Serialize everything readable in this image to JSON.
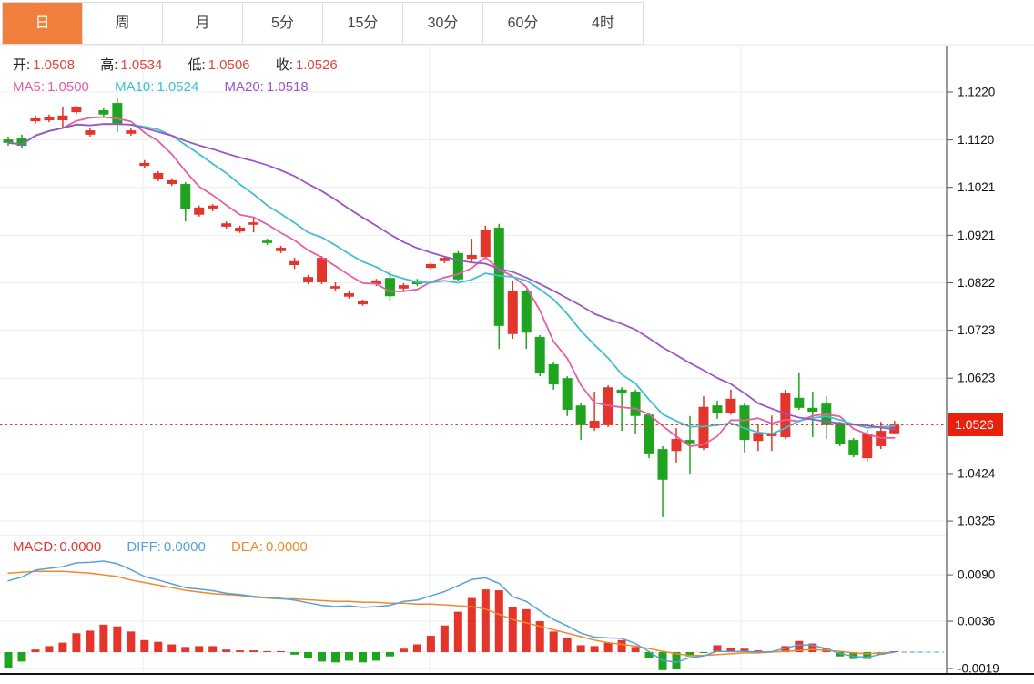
{
  "toolbar": {
    "tabs": [
      {
        "label": "日",
        "active": true
      },
      {
        "label": "周",
        "active": false
      },
      {
        "label": "月",
        "active": false
      },
      {
        "label": "5分",
        "active": false
      },
      {
        "label": "15分",
        "active": false
      },
      {
        "label": "30分",
        "active": false
      },
      {
        "label": "60分",
        "active": false
      },
      {
        "label": "4时",
        "active": false
      }
    ]
  },
  "legend": {
    "ohlc": {
      "items": [
        {
          "label": "开:",
          "value": "1.0508"
        },
        {
          "label": "高:",
          "value": "1.0534"
        },
        {
          "label": "低:",
          "value": "1.0506"
        },
        {
          "label": "收:",
          "value": "1.0526"
        }
      ]
    },
    "ma": {
      "items": [
        {
          "label": "MA5:",
          "value": "1.0500"
        },
        {
          "label": "MA10:",
          "value": "1.0524"
        },
        {
          "label": "MA20:",
          "value": "1.0518"
        }
      ]
    },
    "macd": {
      "items": [
        {
          "label": "MACD:",
          "value": "0.0000"
        },
        {
          "label": "DIFF:",
          "value": "0.0000"
        },
        {
          "label": "DEA:",
          "value": "0.0000"
        }
      ]
    }
  },
  "price_axis": {
    "last_price_label": "1.0526"
  },
  "colors": {
    "up": "#e3352b",
    "down": "#1fa41f",
    "ma5": "#e45fa4",
    "ma10": "#3fc0cf",
    "ma20": "#9c56c4",
    "diff": "#58a0dd",
    "dea": "#ee8a2a",
    "grid": "#e9eef4",
    "zero_line": "#ccd6de",
    "current_line": "#e0392e",
    "dashed_extension": "#a5cde8",
    "badge_bg": "#e8210d",
    "badge_text": "#ffffff",
    "axis_line": "#555555",
    "bottom_line": "#111111",
    "separator": "#e2e2e2",
    "tick_text": "#111111",
    "legend_value": "#e0463c",
    "tab_active_bg": "#f0803c",
    "tab_active_text": "#ffffff"
  },
  "chart_data": {
    "type": "candlestick",
    "title": "",
    "legend_position": "top-left",
    "grid": true,
    "price_panel": {
      "ticks": [
        1.122,
        1.112,
        1.1021,
        1.0921,
        1.0822,
        1.0723,
        1.0623,
        1.0424,
        1.0325
      ],
      "current_price": 1.0526,
      "last_ohlc": {
        "open": 1.0508,
        "high": 1.0534,
        "low": 1.0506,
        "close": 1.0526
      },
      "ma_periods": [
        5,
        10,
        20
      ],
      "ma_current": {
        "ma5": 1.05,
        "ma10": 1.0524,
        "ma20": 1.0518
      },
      "candles_ohlc": [
        [
          1.1121,
          1.1127,
          1.1108,
          1.1114
        ],
        [
          1.1123,
          1.1131,
          1.1104,
          1.1108
        ],
        [
          1.1159,
          1.1171,
          1.1154,
          1.1165
        ],
        [
          1.1161,
          1.1173,
          1.1157,
          1.1167
        ],
        [
          1.1161,
          1.1188,
          1.1146,
          1.1171
        ],
        [
          1.1178,
          1.1192,
          1.1174,
          1.1188
        ],
        [
          1.1131,
          1.1144,
          1.1127,
          1.114
        ],
        [
          1.1182,
          1.1186,
          1.1169,
          1.1173
        ],
        [
          1.1197,
          1.1207,
          1.1136,
          1.1152
        ],
        [
          1.1133,
          1.1146,
          1.1129,
          1.114
        ],
        [
          1.1066,
          1.1078,
          1.1062,
          1.1072
        ],
        [
          1.1038,
          1.1055,
          1.1034,
          1.1051
        ],
        [
          1.1028,
          1.104,
          1.1024,
          1.1036
        ],
        [
          1.1028,
          1.1032,
          1.095,
          1.0975
        ],
        [
          1.0964,
          1.0983,
          1.096,
          1.0979
        ],
        [
          1.0977,
          1.0986,
          1.0971,
          1.0983
        ],
        [
          1.0939,
          1.095,
          1.0935,
          1.0946
        ],
        [
          1.0929,
          1.0941,
          1.0926,
          1.0937
        ],
        [
          1.0943,
          1.096,
          1.0927,
          1.0948
        ],
        [
          1.091,
          1.0914,
          1.0901,
          1.0905
        ],
        [
          1.0888,
          1.0899,
          1.0884,
          1.0895
        ],
        [
          1.0859,
          1.0874,
          1.0851,
          1.0867
        ],
        [
          1.0823,
          1.0838,
          1.0819,
          1.0834
        ],
        [
          1.0823,
          1.0878,
          1.0819,
          1.0874
        ],
        [
          1.081,
          1.0823,
          1.0804,
          1.0815
        ],
        [
          1.0793,
          1.0804,
          1.0789,
          1.08
        ],
        [
          1.0777,
          1.0787,
          1.0774,
          1.0783
        ],
        [
          1.0819,
          1.083,
          1.0815,
          1.0827
        ],
        [
          1.0832,
          1.0846,
          1.0785,
          1.0794
        ],
        [
          1.081,
          1.0821,
          1.0806,
          1.0817
        ],
        [
          1.0827,
          1.083,
          1.0815,
          1.0819
        ],
        [
          1.0853,
          1.0865,
          1.085,
          1.0861
        ],
        [
          1.0867,
          1.0878,
          1.0863,
          1.0874
        ],
        [
          1.0884,
          1.0888,
          1.0825,
          1.0829
        ],
        [
          1.0872,
          1.0914,
          1.0865,
          1.088
        ],
        [
          1.0876,
          1.0941,
          1.0872,
          1.0933
        ],
        [
          1.0937,
          1.0945,
          1.0684,
          1.0732
        ],
        [
          1.0715,
          1.0827,
          1.0705,
          1.0804
        ],
        [
          1.0804,
          1.0808,
          1.0684,
          1.0718
        ],
        [
          1.0709,
          1.0713,
          1.0627,
          1.0633
        ],
        [
          1.0652,
          1.0656,
          1.0599,
          1.061
        ],
        [
          1.0623,
          1.0627,
          1.0544,
          1.0557
        ],
        [
          1.0566,
          1.057,
          1.0494,
          1.0525
        ],
        [
          1.0519,
          1.0595,
          1.0513,
          1.0534
        ],
        [
          1.0525,
          1.0608,
          1.0521,
          1.0604
        ],
        [
          1.0599,
          1.0604,
          1.0513,
          1.0591
        ],
        [
          1.0595,
          1.0599,
          1.0506,
          1.0544
        ],
        [
          1.0547,
          1.0551,
          1.0456,
          1.0466
        ],
        [
          1.0475,
          1.0481,
          1.0333,
          1.0411
        ],
        [
          1.0471,
          1.0519,
          1.0447,
          1.0496
        ],
        [
          1.0494,
          1.0544,
          1.0424,
          1.0487
        ],
        [
          1.0477,
          1.0585,
          1.0473,
          1.0563
        ],
        [
          1.0566,
          1.0576,
          1.0538,
          1.0551
        ],
        [
          1.0551,
          1.0599,
          1.0547,
          1.058
        ],
        [
          1.0566,
          1.057,
          1.0468,
          1.0494
        ],
        [
          1.0492,
          1.0528,
          1.0471,
          1.0509
        ],
        [
          1.0502,
          1.0545,
          1.0471,
          1.0509
        ],
        [
          1.05,
          1.0599,
          1.0496,
          1.0591
        ],
        [
          1.0582,
          1.0635,
          1.0557,
          1.0561
        ],
        [
          1.0561,
          1.0595,
          1.05,
          1.0553
        ],
        [
          1.057,
          1.0585,
          1.0496,
          1.0525
        ],
        [
          1.0528,
          1.0532,
          1.0481,
          1.0485
        ],
        [
          1.0494,
          1.0498,
          1.0458,
          1.0462
        ],
        [
          1.0456,
          1.0515,
          1.0449,
          1.0506
        ],
        [
          1.0481,
          1.0532,
          1.0475,
          1.0513
        ],
        [
          1.0508,
          1.0534,
          1.0506,
          1.0526
        ]
      ]
    },
    "macd_panel": {
      "ticks": [
        0.009,
        0.0036,
        -0.0019
      ],
      "hist": [
        -0.0018,
        -0.0011,
        0.0003,
        0.0007,
        0.0011,
        0.0022,
        0.0025,
        0.0032,
        0.003,
        0.0024,
        0.0014,
        0.0012,
        0.0009,
        0.0006,
        0.0007,
        0.0007,
        0.0003,
        0.0002,
        0.0002,
        0.0001,
        0.0001,
        -0.0003,
        -0.0007,
        -0.0011,
        -0.0012,
        -0.001,
        -0.0012,
        -0.001,
        -0.0005,
        0.0004,
        0.0009,
        0.0019,
        0.0031,
        0.0047,
        0.0063,
        0.0073,
        0.0072,
        0.0053,
        0.005,
        0.0036,
        0.0024,
        0.0017,
        0.0008,
        0.0007,
        0.0011,
        0.0014,
        0.0006,
        -0.0007,
        -0.0021,
        -0.002,
        -0.0005,
        -0.0001,
        0.0008,
        0.0005,
        0.0004,
        0.0002,
        0.0001,
        0.0007,
        0.0013,
        0.001,
        0.0004,
        -0.0005,
        -0.0008,
        -0.0008,
        -0.0003,
        0.0
      ],
      "dea": [
        0.0092,
        0.0093,
        0.0094,
        0.0094,
        0.0094,
        0.0093,
        0.0092,
        0.009,
        0.0088,
        0.0084,
        0.0081,
        0.0078,
        0.0075,
        0.0072,
        0.007,
        0.0068,
        0.0067,
        0.0066,
        0.0064,
        0.0063,
        0.0062,
        0.0062,
        0.0061,
        0.006,
        0.0059,
        0.0059,
        0.0058,
        0.0058,
        0.0057,
        0.0057,
        0.0056,
        0.0056,
        0.0055,
        0.0054,
        0.0053,
        0.005,
        0.0044,
        0.0038,
        0.0034,
        0.003,
        0.0026,
        0.0022,
        0.0018,
        0.0014,
        0.0011,
        0.0009,
        0.0007,
        0.0004,
        0.0001,
        -0.0002,
        -0.0004,
        -0.0004,
        -0.0003,
        -0.0002,
        -0.0001,
        -0.0001,
        0.0,
        0.0001,
        0.0002,
        0.0003,
        0.0002,
        0.0001,
        -0.0001,
        -0.0002,
        -0.0001,
        0.0
      ]
    }
  }
}
